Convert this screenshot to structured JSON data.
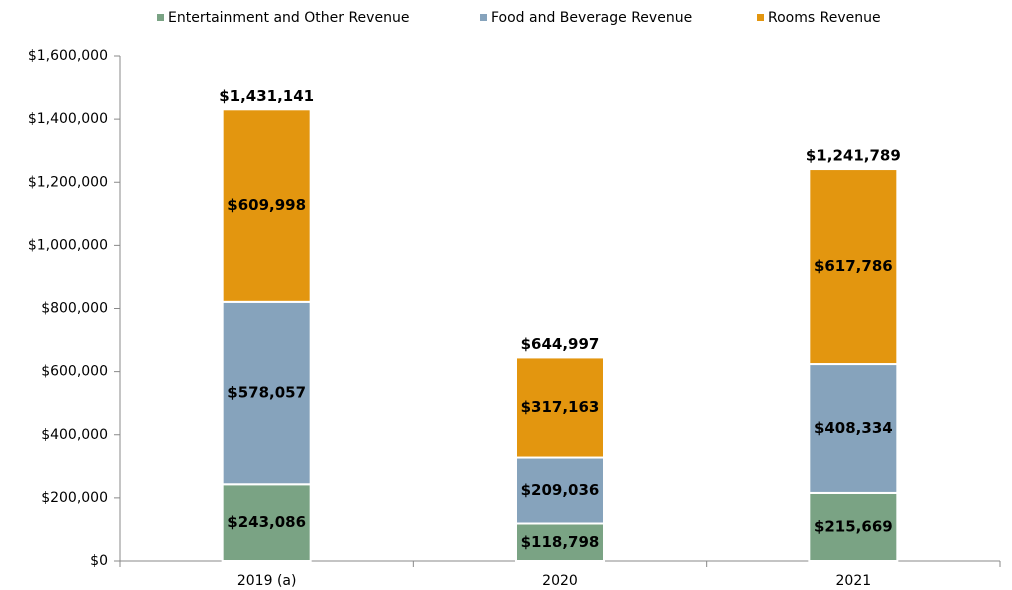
{
  "chart_data": {
    "type": "stacked_bar",
    "categories": [
      "2019 (a)",
      "2020",
      "2021"
    ],
    "series": [
      {
        "name": "Entertainment and Other Revenue",
        "color": "#7aa384",
        "values": [
          243086,
          118798,
          215669
        ],
        "value_labels": [
          "$243,086",
          "$118,798",
          "$215,669"
        ]
      },
      {
        "name": "Food and Beverage Revenue",
        "color": "#86a3bc",
        "values": [
          578057,
          209036,
          408334
        ],
        "value_labels": [
          "$578,057",
          "$209,036",
          "$408,334"
        ]
      },
      {
        "name": "Rooms Revenue",
        "color": "#e3960f",
        "values": [
          609998,
          317163,
          617786
        ],
        "value_labels": [
          "$609,998",
          "$317,163",
          "$617,786"
        ]
      }
    ],
    "totals": [
      1431141,
      644997,
      1241789
    ],
    "total_labels": [
      "$1,431,141",
      "$644,997",
      "$1,241,789"
    ],
    "ylim": [
      0,
      1600000
    ],
    "yticks": [
      {
        "value": 0,
        "label": "$0"
      },
      {
        "value": 200000,
        "label": "$200,000"
      },
      {
        "value": 400000,
        "label": "$400,000"
      },
      {
        "value": 600000,
        "label": "$600,000"
      },
      {
        "value": 800000,
        "label": "$800,000"
      },
      {
        "value": 1000000,
        "label": "$1,000,000"
      },
      {
        "value": 1200000,
        "label": "$1,200,000"
      },
      {
        "value": 1400000,
        "label": "$1,400,000"
      },
      {
        "value": 1600000,
        "label": "$1,600,000"
      }
    ],
    "legend": "top"
  }
}
